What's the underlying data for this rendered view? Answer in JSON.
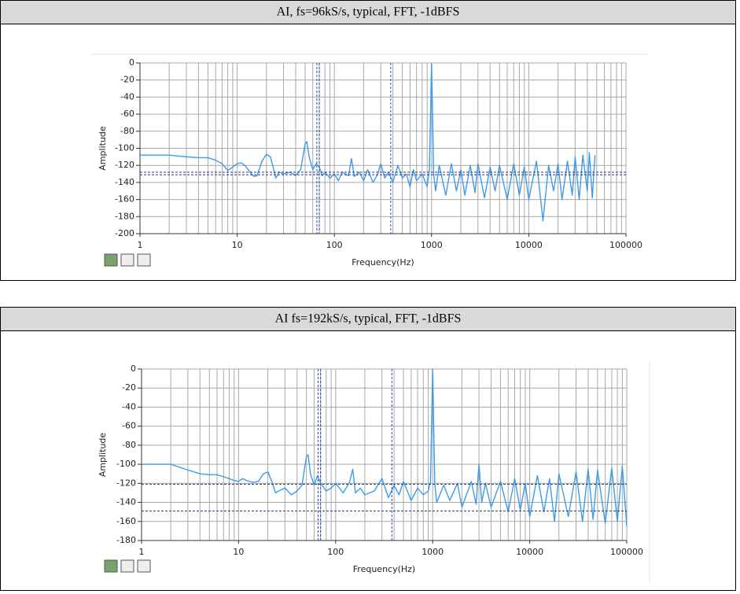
{
  "chart_data": [
    {
      "type": "line",
      "title": "AI, fs=96kS/s, typical, FFT, -1dBFS",
      "xlabel": "Frequency(Hz)",
      "ylabel": "Amplitude",
      "xscale": "log",
      "xlim": [
        1,
        100000
      ],
      "xticks": [
        1,
        10,
        100,
        1000,
        10000,
        100000
      ],
      "ylim": [
        -200,
        0
      ],
      "yticks": [
        0,
        -20,
        -40,
        -60,
        -80,
        -100,
        -120,
        -140,
        -160,
        -180,
        -200
      ],
      "grid": true,
      "color": "#3e9be9",
      "cursor_x": [
        66,
        70,
        380
      ],
      "cursor_y": [
        -128,
        -131
      ],
      "x": [
        1,
        2,
        3,
        4,
        5,
        6,
        7,
        8,
        9,
        10,
        11,
        12,
        14,
        15,
        16,
        18,
        20,
        22,
        24,
        25,
        27,
        30,
        35,
        40,
        45,
        50,
        52,
        55,
        60,
        65,
        70,
        75,
        80,
        90,
        100,
        110,
        120,
        140,
        150,
        160,
        180,
        200,
        220,
        250,
        280,
        300,
        330,
        360,
        400,
        450,
        500,
        550,
        600,
        650,
        700,
        800,
        900,
        950,
        1000,
        1050,
        1100,
        1200,
        1400,
        1600,
        1800,
        2000,
        2200,
        2500,
        2800,
        3000,
        3500,
        4000,
        4500,
        5000,
        6000,
        7000,
        8000,
        9000,
        10000,
        12000,
        14000,
        16000,
        18000,
        20000,
        22000,
        25000,
        28000,
        30000,
        33000,
        36000,
        40000,
        42000,
        45000,
        48000
      ],
      "values": [
        -108,
        -108,
        -110,
        -111,
        -111,
        -114,
        -118,
        -126,
        -122,
        -118,
        -117,
        -120,
        -130,
        -133,
        -132,
        -115,
        -107,
        -110,
        -127,
        -135,
        -128,
        -130,
        -128,
        -132,
        -125,
        -95,
        -92,
        -110,
        -125,
        -118,
        -122,
        -132,
        -128,
        -135,
        -130,
        -138,
        -128,
        -132,
        -112,
        -133,
        -128,
        -138,
        -125,
        -140,
        -130,
        -118,
        -135,
        -128,
        -140,
        -120,
        -135,
        -130,
        -145,
        -125,
        -138,
        -130,
        -145,
        -125,
        -1,
        -130,
        -150,
        -120,
        -155,
        -118,
        -150,
        -125,
        -155,
        -120,
        -152,
        -118,
        -158,
        -122,
        -150,
        -120,
        -160,
        -118,
        -155,
        -122,
        -160,
        -115,
        -185,
        -120,
        -150,
        -118,
        -160,
        -115,
        -155,
        -110,
        -160,
        -108,
        -150,
        -105,
        -158,
        -108
      ]
    },
    {
      "type": "line",
      "title": "AI fs=192kS/s, typical, FFT, -1dBFS",
      "xlabel": "Frequency(Hz)",
      "ylabel": "Amplitude",
      "xscale": "log",
      "xlim": [
        1,
        100000
      ],
      "xticks": [
        1,
        10,
        100,
        1000,
        10000,
        100000
      ],
      "ylim": [
        -180,
        0
      ],
      "yticks": [
        0,
        -20,
        -40,
        -60,
        -80,
        -100,
        -120,
        -140,
        -160,
        -180
      ],
      "grid": true,
      "color": "#3e9be9",
      "cursor_x": [
        66,
        70,
        380
      ],
      "cursor_y": [
        -121,
        -149
      ],
      "x": [
        1,
        2,
        3,
        4,
        5,
        6,
        7,
        8,
        9,
        10,
        11,
        12,
        14,
        16,
        18,
        20,
        22,
        24,
        26,
        30,
        35,
        40,
        45,
        50,
        52,
        55,
        60,
        65,
        70,
        80,
        90,
        100,
        120,
        140,
        150,
        160,
        180,
        200,
        250,
        300,
        350,
        400,
        450,
        500,
        600,
        700,
        800,
        900,
        950,
        1000,
        1050,
        1100,
        1300,
        1500,
        1800,
        2000,
        2500,
        2800,
        3000,
        3200,
        3500,
        4000,
        5000,
        6000,
        7000,
        8000,
        9000,
        10000,
        12000,
        14000,
        16000,
        18000,
        20000,
        25000,
        30000,
        35000,
        40000,
        45000,
        50000,
        60000,
        70000,
        80000,
        90000,
        100000
      ],
      "values": [
        -100,
        -100,
        -106,
        -110,
        -111,
        -111,
        -113,
        -115,
        -117,
        -118,
        -115,
        -117,
        -119,
        -118,
        -110,
        -108,
        -118,
        -130,
        -128,
        -125,
        -132,
        -128,
        -122,
        -92,
        -90,
        -110,
        -122,
        -112,
        -120,
        -128,
        -125,
        -120,
        -130,
        -118,
        -105,
        -130,
        -125,
        -132,
        -128,
        -115,
        -135,
        -122,
        -132,
        -118,
        -138,
        -125,
        -132,
        -128,
        -118,
        0,
        -120,
        -140,
        -122,
        -138,
        -120,
        -145,
        -118,
        -142,
        -100,
        -140,
        -120,
        -145,
        -118,
        -150,
        -115,
        -148,
        -120,
        -155,
        -112,
        -150,
        -115,
        -160,
        -110,
        -155,
        -108,
        -160,
        -105,
        -158,
        -106,
        -162,
        -104,
        -160,
        -102,
        -165
      ]
    }
  ]
}
